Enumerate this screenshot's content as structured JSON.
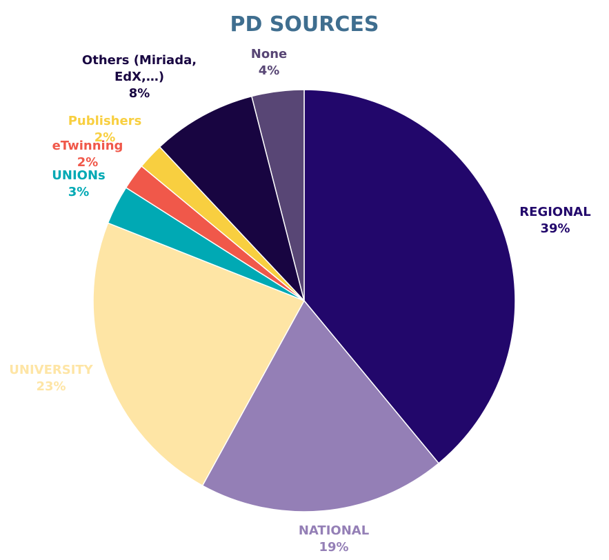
{
  "chart_data": {
    "type": "pie",
    "title": "PD SOURCES",
    "categories": [
      "REGIONAL",
      "NATIONAL",
      "UNIVERSITY",
      "UNIONs",
      "eTwinning",
      "Publishers",
      "Others (Miriada, EdX,…)",
      "None"
    ],
    "values": [
      39,
      19,
      23,
      3,
      2,
      2,
      8,
      4
    ],
    "value_labels": [
      "39%",
      "19%",
      "23%",
      "3%",
      "2%",
      "2%",
      "8%",
      "4%"
    ],
    "colors": [
      "#22076b",
      "#947fb6",
      "#fee5a5",
      "#00a9b4",
      "#f0584a",
      "#f8cf40",
      "#180541",
      "#584675"
    ]
  }
}
